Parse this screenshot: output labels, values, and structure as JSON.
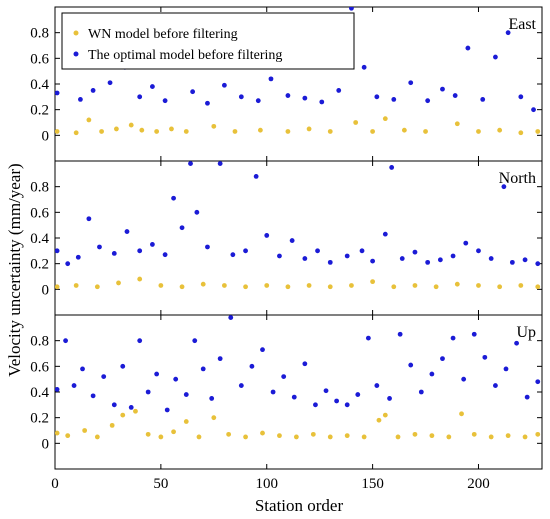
{
  "chart_data": {
    "type": "scatter",
    "xlabel": "Station order",
    "ylabel": "Velocity uncertainty (mm/year)",
    "xlim": [
      0,
      230
    ],
    "xticks": [
      0,
      50,
      100,
      150,
      200
    ],
    "ylim": [
      -0.2,
      1.0
    ],
    "yticks": [
      0,
      0.2,
      0.4,
      0.6,
      0.8
    ],
    "legend": {
      "placement": "top-left",
      "entries": [
        "WN model before filtering",
        "The optimal model before filtering"
      ]
    },
    "series_colors": [
      "#E8C13A",
      "#1B1BD6"
    ],
    "panels": [
      {
        "label": "East",
        "series": [
          {
            "name": "WN model before filtering",
            "x": [
              1,
              10,
              16,
              22,
              29,
              36,
              41,
              48,
              55,
              62,
              75,
              85,
              97,
              110,
              120,
              130,
              142,
              150,
              156,
              165,
              175,
              190,
              200,
              210,
              220,
              228
            ],
            "y": [
              0.03,
              0.02,
              0.12,
              0.03,
              0.05,
              0.08,
              0.04,
              0.03,
              0.05,
              0.03,
              0.07,
              0.03,
              0.04,
              0.03,
              0.05,
              0.03,
              0.1,
              0.03,
              0.13,
              0.04,
              0.03,
              0.09,
              0.03,
              0.04,
              0.02,
              0.03
            ]
          },
          {
            "name": "The optimal model before filtering",
            "x": [
              1,
              5,
              12,
              18,
              26,
              33,
              40,
              46,
              52,
              58,
              65,
              72,
              80,
              88,
              96,
              102,
              110,
              118,
              126,
              134,
              140,
              146,
              152,
              160,
              168,
              176,
              183,
              189,
              195,
              202,
              208,
              214,
              220,
              226
            ],
            "y": [
              0.33,
              0.68,
              0.28,
              0.35,
              0.41,
              0.53,
              0.3,
              0.38,
              0.27,
              0.57,
              0.34,
              0.25,
              0.39,
              0.3,
              0.27,
              0.44,
              0.31,
              0.29,
              0.26,
              0.35,
              0.99,
              0.53,
              0.3,
              0.28,
              0.41,
              0.27,
              0.36,
              0.31,
              0.68,
              0.28,
              0.61,
              0.8,
              0.3,
              0.2
            ]
          }
        ]
      },
      {
        "label": "North",
        "series": [
          {
            "name": "WN model before filtering",
            "x": [
              1,
              10,
              20,
              30,
              40,
              50,
              60,
              70,
              80,
              90,
              100,
              110,
              120,
              130,
              140,
              150,
              160,
              170,
              180,
              190,
              200,
              210,
              220,
              228
            ],
            "y": [
              0.02,
              0.03,
              0.02,
              0.05,
              0.08,
              0.03,
              0.02,
              0.04,
              0.03,
              0.02,
              0.03,
              0.02,
              0.03,
              0.02,
              0.03,
              0.06,
              0.02,
              0.03,
              0.02,
              0.04,
              0.03,
              0.02,
              0.03,
              0.02
            ]
          },
          {
            "name": "The optimal model before filtering",
            "x": [
              1,
              6,
              11,
              16,
              21,
              28,
              34,
              40,
              46,
              52,
              56,
              60,
              64,
              67,
              72,
              78,
              84,
              90,
              95,
              100,
              106,
              112,
              118,
              124,
              130,
              138,
              145,
              150,
              156,
              159,
              164,
              170,
              176,
              182,
              188,
              194,
              200,
              206,
              212,
              216,
              222,
              228
            ],
            "y": [
              0.3,
              0.2,
              0.25,
              0.55,
              0.33,
              0.28,
              0.45,
              0.3,
              0.35,
              0.27,
              0.71,
              0.48,
              0.98,
              0.6,
              0.33,
              0.98,
              0.27,
              0.3,
              0.88,
              0.42,
              0.26,
              0.38,
              0.24,
              0.3,
              0.21,
              0.26,
              0.3,
              0.22,
              0.43,
              0.95,
              0.24,
              0.29,
              0.21,
              0.23,
              0.26,
              0.36,
              0.3,
              0.24,
              0.8,
              0.21,
              0.23,
              0.2
            ]
          }
        ]
      },
      {
        "label": "Up",
        "series": [
          {
            "name": "WN model before filtering",
            "x": [
              1,
              6,
              14,
              20,
              27,
              32,
              38,
              44,
              50,
              56,
              62,
              68,
              75,
              82,
              90,
              98,
              106,
              114,
              122,
              130,
              138,
              146,
              153,
              156,
              162,
              170,
              178,
              186,
              192,
              198,
              206,
              214,
              222,
              228
            ],
            "y": [
              0.08,
              0.06,
              0.1,
              0.05,
              0.14,
              0.22,
              0.25,
              0.07,
              0.05,
              0.09,
              0.17,
              0.05,
              0.2,
              0.07,
              0.05,
              0.08,
              0.06,
              0.05,
              0.07,
              0.05,
              0.06,
              0.05,
              0.18,
              0.22,
              0.05,
              0.07,
              0.06,
              0.05,
              0.23,
              0.07,
              0.05,
              0.06,
              0.05,
              0.07
            ]
          },
          {
            "name": "The optimal model before filtering",
            "x": [
              1,
              5,
              9,
              13,
              18,
              23,
              28,
              32,
              36,
              40,
              44,
              48,
              53,
              57,
              62,
              66,
              70,
              74,
              78,
              83,
              88,
              93,
              98,
              103,
              108,
              113,
              118,
              123,
              128,
              133,
              138,
              143,
              148,
              152,
              158,
              163,
              168,
              173,
              178,
              183,
              188,
              193,
              198,
              203,
              208,
              213,
              218,
              223,
              228
            ],
            "y": [
              0.42,
              0.8,
              0.45,
              0.58,
              0.37,
              0.52,
              0.3,
              0.6,
              0.28,
              0.8,
              0.4,
              0.54,
              0.26,
              0.5,
              0.38,
              0.8,
              0.58,
              0.35,
              0.66,
              0.98,
              0.45,
              0.6,
              0.73,
              0.4,
              0.52,
              0.36,
              0.62,
              0.3,
              0.41,
              0.33,
              0.3,
              0.38,
              0.82,
              0.45,
              0.35,
              0.85,
              0.61,
              0.4,
              0.54,
              0.66,
              0.82,
              0.5,
              0.85,
              0.67,
              0.45,
              0.58,
              0.78,
              0.36,
              0.48
            ]
          }
        ]
      }
    ]
  }
}
